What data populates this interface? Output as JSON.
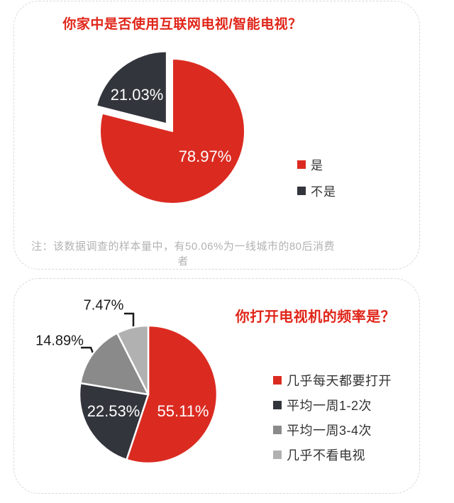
{
  "colors": {
    "red": "#db2b21",
    "dark": "#33353c",
    "mid_gray": "#8a8a8a",
    "light_gray": "#b1b1b1",
    "title_red": "#e02519",
    "note_gray": "#b3b3b3",
    "leader_line": "#1a1a1a",
    "panel_border": "#d9d9d9"
  },
  "chart_data": [
    {
      "type": "pie",
      "title": "你家中是否使用互联网电视/智能电视？",
      "labels": [
        "是",
        "不是"
      ],
      "values": [
        78.97,
        21.03
      ],
      "value_labels": [
        "78.97%",
        "21.03%"
      ],
      "colors": [
        "#db2b21",
        "#33353c"
      ],
      "start_angle_deg": 0,
      "direction": "clockwise",
      "explode": [
        0,
        0.13
      ],
      "legend_position": "right",
      "note": "注：该数据调查的样本量中，有50.06%为一线城市的80后消费者"
    },
    {
      "type": "pie",
      "title": "你打开电视机的频率是？",
      "labels": [
        "几乎每天都要打开",
        "平均一周1-2次",
        "平均一周3-4次",
        "几乎不看电视"
      ],
      "values": [
        55.11,
        22.53,
        14.89,
        7.47
      ],
      "value_labels": [
        "55.11%",
        "22.53%",
        "14.89%",
        "7.47%"
      ],
      "colors": [
        "#db2b21",
        "#33353c",
        "#8a8a8a",
        "#b1b1b1"
      ],
      "start_angle_deg": 0,
      "direction": "clockwise",
      "explode": [
        0,
        0,
        0,
        0
      ],
      "legend_position": "right"
    }
  ]
}
